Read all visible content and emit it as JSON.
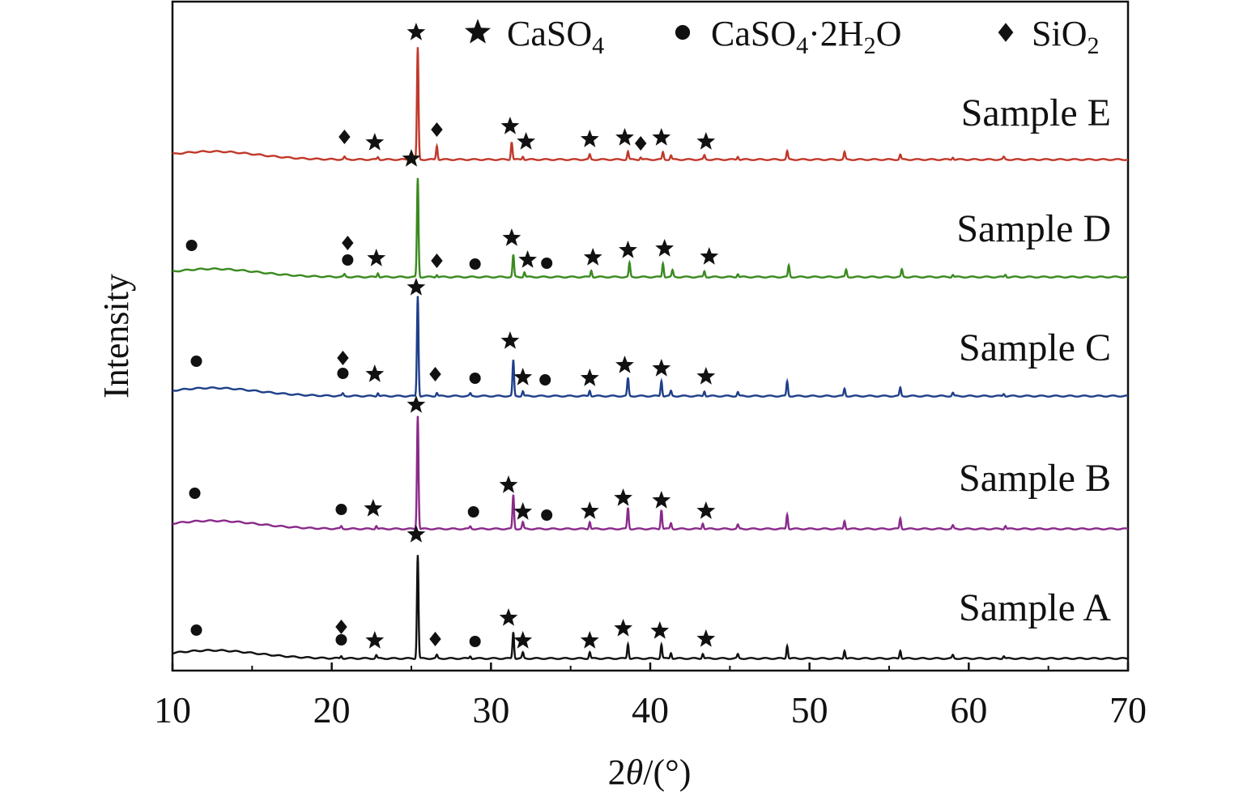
{
  "chart_data": {
    "type": "line",
    "title": "",
    "xlabel_prefix": "2",
    "xlabel_theta": "θ",
    "xlabel_suffix": "/(°)",
    "ylabel": "Intensity",
    "xlim": [
      10,
      70
    ],
    "xticks": [
      10,
      20,
      30,
      40,
      50,
      60,
      70
    ],
    "xtick_labels": [
      "10",
      "20",
      "30",
      "40",
      "50",
      "60",
      "70"
    ],
    "y_units": "arbitrary, stacked traces",
    "legend": [
      {
        "marker": "star",
        "base": "CaSO",
        "sub": "4",
        "rest": ""
      },
      {
        "marker": "circle",
        "base": "CaSO",
        "sub": "4",
        "rest": "·2H",
        "sub2": "2",
        "tail": "O"
      },
      {
        "marker": "diamond",
        "base": "SiO",
        "sub": "2",
        "rest": ""
      }
    ],
    "series": [
      {
        "name": "Sample E",
        "color": "#c0392b",
        "peaks": [
          {
            "x": 20.8,
            "h": 3
          },
          {
            "x": 22.9,
            "h": 3
          },
          {
            "x": 25.4,
            "h": 138
          },
          {
            "x": 26.6,
            "h": 17
          },
          {
            "x": 31.3,
            "h": 22
          },
          {
            "x": 32.0,
            "h": 4
          },
          {
            "x": 36.2,
            "h": 6
          },
          {
            "x": 38.6,
            "h": 10
          },
          {
            "x": 39.4,
            "h": 3
          },
          {
            "x": 40.8,
            "h": 9
          },
          {
            "x": 41.3,
            "h": 5
          },
          {
            "x": 43.4,
            "h": 5
          },
          {
            "x": 45.5,
            "h": 4
          },
          {
            "x": 48.6,
            "h": 10
          },
          {
            "x": 52.2,
            "h": 9
          },
          {
            "x": 55.7,
            "h": 6
          },
          {
            "x": 59.0,
            "h": 3
          },
          {
            "x": 62.2,
            "h": 3
          }
        ],
        "markers": [
          {
            "type": "diamond",
            "x": 20.8,
            "h": 28
          },
          {
            "type": "star",
            "x": 22.7,
            "h": 21
          },
          {
            "type": "star",
            "x": 25.3,
            "h": 157
          },
          {
            "type": "diamond",
            "x": 26.6,
            "h": 37
          },
          {
            "type": "star",
            "x": 31.2,
            "h": 41
          },
          {
            "type": "star",
            "x": 32.2,
            "h": 22
          },
          {
            "type": "star",
            "x": 36.2,
            "h": 25
          },
          {
            "type": "star",
            "x": 38.4,
            "h": 27
          },
          {
            "type": "diamond",
            "x": 39.4,
            "h": 20
          },
          {
            "type": "star",
            "x": 40.7,
            "h": 27
          },
          {
            "type": "star",
            "x": 43.5,
            "h": 22
          }
        ]
      },
      {
        "name": "Sample D",
        "color": "#3a8a1f",
        "peaks": [
          {
            "x": 20.8,
            "h": 3
          },
          {
            "x": 22.9,
            "h": 5
          },
          {
            "x": 25.4,
            "h": 122
          },
          {
            "x": 26.6,
            "h": 3
          },
          {
            "x": 31.4,
            "h": 27
          },
          {
            "x": 32.1,
            "h": 6
          },
          {
            "x": 36.3,
            "h": 8
          },
          {
            "x": 38.7,
            "h": 17
          },
          {
            "x": 40.8,
            "h": 17
          },
          {
            "x": 41.4,
            "h": 8
          },
          {
            "x": 43.4,
            "h": 7
          },
          {
            "x": 45.5,
            "h": 4
          },
          {
            "x": 48.7,
            "h": 14
          },
          {
            "x": 52.3,
            "h": 9
          },
          {
            "x": 55.8,
            "h": 9
          },
          {
            "x": 59.0,
            "h": 3
          },
          {
            "x": 62.3,
            "h": 3
          }
        ],
        "markers": [
          {
            "type": "circle",
            "x": 11.2,
            "h": 39
          },
          {
            "type": "diamond",
            "x": 21.0,
            "h": 42
          },
          {
            "type": "circle",
            "x": 21.0,
            "h": 21
          },
          {
            "type": "star",
            "x": 22.8,
            "h": 23
          },
          {
            "type": "star",
            "x": 25.0,
            "h": 146
          },
          {
            "type": "diamond",
            "x": 26.6,
            "h": 20
          },
          {
            "type": "circle",
            "x": 29.0,
            "h": 16
          },
          {
            "type": "star",
            "x": 31.3,
            "h": 48
          },
          {
            "type": "star",
            "x": 32.3,
            "h": 21
          },
          {
            "type": "circle",
            "x": 33.5,
            "h": 17
          },
          {
            "type": "star",
            "x": 36.4,
            "h": 24
          },
          {
            "type": "star",
            "x": 38.6,
            "h": 33
          },
          {
            "type": "star",
            "x": 40.9,
            "h": 35
          },
          {
            "type": "star",
            "x": 43.7,
            "h": 25
          }
        ]
      },
      {
        "name": "Sample C",
        "color": "#1f3f8a",
        "peaks": [
          {
            "x": 20.7,
            "h": 3
          },
          {
            "x": 22.9,
            "h": 4
          },
          {
            "x": 25.4,
            "h": 124
          },
          {
            "x": 26.6,
            "h": 4
          },
          {
            "x": 28.7,
            "h": 3
          },
          {
            "x": 31.4,
            "h": 44
          },
          {
            "x": 32.0,
            "h": 6
          },
          {
            "x": 36.2,
            "h": 7
          },
          {
            "x": 38.6,
            "h": 22
          },
          {
            "x": 40.7,
            "h": 19
          },
          {
            "x": 41.3,
            "h": 6
          },
          {
            "x": 43.4,
            "h": 6
          },
          {
            "x": 45.5,
            "h": 5
          },
          {
            "x": 48.6,
            "h": 18
          },
          {
            "x": 52.2,
            "h": 9
          },
          {
            "x": 55.7,
            "h": 10
          },
          {
            "x": 59.0,
            "h": 4
          },
          {
            "x": 62.2,
            "h": 3
          }
        ],
        "markers": [
          {
            "type": "circle",
            "x": 11.5,
            "h": 43
          },
          {
            "type": "diamond",
            "x": 20.7,
            "h": 47
          },
          {
            "type": "circle",
            "x": 20.7,
            "h": 28
          },
          {
            "type": "star",
            "x": 22.7,
            "h": 27
          },
          {
            "type": "star",
            "x": 25.3,
            "h": 134
          },
          {
            "type": "diamond",
            "x": 26.5,
            "h": 27
          },
          {
            "type": "circle",
            "x": 29.0,
            "h": 22
          },
          {
            "type": "star",
            "x": 31.2,
            "h": 68
          },
          {
            "type": "star",
            "x": 32.0,
            "h": 23
          },
          {
            "type": "circle",
            "x": 33.4,
            "h": 20
          },
          {
            "type": "star",
            "x": 36.2,
            "h": 22
          },
          {
            "type": "star",
            "x": 38.4,
            "h": 38
          },
          {
            "type": "star",
            "x": 40.7,
            "h": 34
          },
          {
            "type": "star",
            "x": 43.5,
            "h": 24
          }
        ]
      },
      {
        "name": "Sample B",
        "color": "#8a2a8a",
        "peaks": [
          {
            "x": 20.6,
            "h": 3
          },
          {
            "x": 22.8,
            "h": 4
          },
          {
            "x": 25.4,
            "h": 140
          },
          {
            "x": 28.7,
            "h": 3
          },
          {
            "x": 31.4,
            "h": 42
          },
          {
            "x": 32.0,
            "h": 8
          },
          {
            "x": 36.2,
            "h": 9
          },
          {
            "x": 38.6,
            "h": 26
          },
          {
            "x": 40.7,
            "h": 24
          },
          {
            "x": 41.3,
            "h": 7
          },
          {
            "x": 43.3,
            "h": 7
          },
          {
            "x": 45.5,
            "h": 5
          },
          {
            "x": 48.6,
            "h": 18
          },
          {
            "x": 52.2,
            "h": 10
          },
          {
            "x": 55.7,
            "h": 13
          },
          {
            "x": 59.0,
            "h": 4
          },
          {
            "x": 62.3,
            "h": 4
          }
        ],
        "markers": [
          {
            "type": "circle",
            "x": 11.4,
            "h": 44
          },
          {
            "type": "circle",
            "x": 20.6,
            "h": 24
          },
          {
            "type": "star",
            "x": 22.6,
            "h": 25
          },
          {
            "type": "star",
            "x": 25.3,
            "h": 153
          },
          {
            "type": "circle",
            "x": 28.9,
            "h": 21
          },
          {
            "type": "star",
            "x": 31.1,
            "h": 54
          },
          {
            "type": "star",
            "x": 32.0,
            "h": 21
          },
          {
            "type": "circle",
            "x": 33.5,
            "h": 17
          },
          {
            "type": "star",
            "x": 36.2,
            "h": 22
          },
          {
            "type": "star",
            "x": 38.3,
            "h": 38
          },
          {
            "type": "star",
            "x": 40.7,
            "h": 35
          },
          {
            "type": "star",
            "x": 43.5,
            "h": 22
          }
        ]
      },
      {
        "name": "Sample A",
        "color": "#111111",
        "peaks": [
          {
            "x": 20.6,
            "h": 3
          },
          {
            "x": 22.8,
            "h": 4
          },
          {
            "x": 25.4,
            "h": 128
          },
          {
            "x": 26.6,
            "h": 4
          },
          {
            "x": 28.7,
            "h": 3
          },
          {
            "x": 31.4,
            "h": 33
          },
          {
            "x": 32.0,
            "h": 7
          },
          {
            "x": 36.2,
            "h": 8
          },
          {
            "x": 38.6,
            "h": 18
          },
          {
            "x": 40.7,
            "h": 17
          },
          {
            "x": 41.3,
            "h": 7
          },
          {
            "x": 43.3,
            "h": 6
          },
          {
            "x": 45.5,
            "h": 5
          },
          {
            "x": 48.6,
            "h": 16
          },
          {
            "x": 52.2,
            "h": 10
          },
          {
            "x": 55.7,
            "h": 10
          },
          {
            "x": 59.0,
            "h": 4
          },
          {
            "x": 62.2,
            "h": 3
          }
        ],
        "markers": [
          {
            "type": "circle",
            "x": 11.5,
            "h": 35
          },
          {
            "type": "diamond",
            "x": 20.6,
            "h": 39
          },
          {
            "type": "circle",
            "x": 20.6,
            "h": 23
          },
          {
            "type": "star",
            "x": 22.7,
            "h": 22
          },
          {
            "type": "star",
            "x": 25.3,
            "h": 153
          },
          {
            "type": "diamond",
            "x": 26.5,
            "h": 24
          },
          {
            "type": "circle",
            "x": 29.0,
            "h": 21
          },
          {
            "type": "star",
            "x": 31.1,
            "h": 50
          },
          {
            "type": "star",
            "x": 32.0,
            "h": 22
          },
          {
            "type": "star",
            "x": 36.2,
            "h": 22
          },
          {
            "type": "star",
            "x": 38.3,
            "h": 37
          },
          {
            "type": "star",
            "x": 40.6,
            "h": 34
          },
          {
            "type": "star",
            "x": 43.5,
            "h": 24
          }
        ]
      }
    ]
  }
}
